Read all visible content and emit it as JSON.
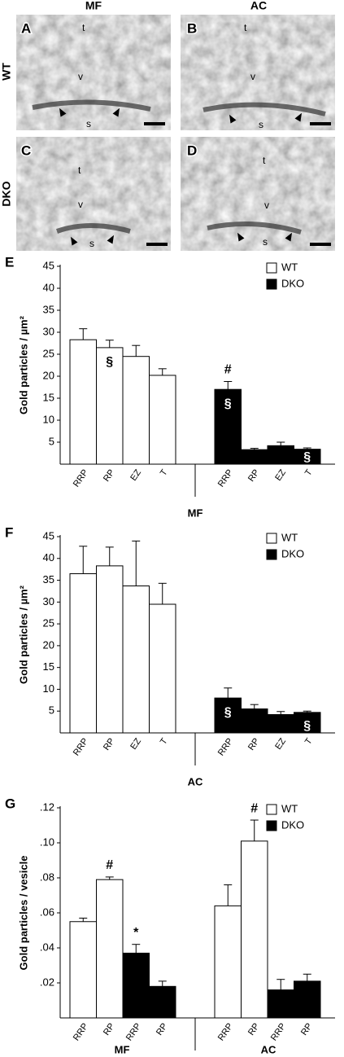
{
  "micrographs": {
    "headers": [
      "MF",
      "AC"
    ],
    "rows": [
      "WT",
      "DKO"
    ],
    "panels": [
      {
        "letter": "A",
        "labels": [
          "t",
          "v",
          "s"
        ]
      },
      {
        "letter": "B",
        "labels": [
          "t",
          "v",
          "s"
        ]
      },
      {
        "letter": "C",
        "labels": [
          "t",
          "v",
          "s"
        ]
      },
      {
        "letter": "D",
        "labels": [
          "t",
          "v",
          "s"
        ]
      }
    ]
  },
  "chart_data": [
    {
      "type": "bar",
      "panel": "E",
      "y_label": "Gold particles / µm²",
      "x_label": "MF",
      "categories": [
        "RRP",
        "RP",
        "EZ",
        "T",
        "RRP",
        "RP",
        "EZ",
        "T"
      ],
      "series": [
        {
          "name": "WT",
          "color": "#ffffff",
          "values": [
            28.3,
            26.5,
            24.5,
            20.2,
            null,
            null,
            null,
            null
          ],
          "errors": [
            2.5,
            1.7,
            2.5,
            1.5,
            null,
            null,
            null,
            null
          ],
          "labels_above": [
            null,
            null,
            null,
            null,
            null,
            null,
            null,
            null
          ],
          "labels_inside": [
            null,
            "§",
            null,
            null,
            null,
            null,
            null,
            null
          ]
        },
        {
          "name": "DKO",
          "color": "#000000",
          "values": [
            null,
            null,
            null,
            null,
            17.0,
            3.3,
            4.2,
            3.4
          ],
          "errors": [
            null,
            null,
            null,
            null,
            1.8,
            0.3,
            0.8,
            0.3
          ],
          "labels_above": [
            null,
            null,
            null,
            null,
            "#",
            null,
            null,
            null
          ],
          "labels_inside": [
            null,
            null,
            null,
            null,
            "§",
            null,
            null,
            "§"
          ]
        }
      ],
      "ylim": [
        0,
        45
      ],
      "yticks": [
        5,
        10,
        15,
        20,
        25,
        30,
        35,
        40,
        45
      ],
      "legend": "top-right"
    },
    {
      "type": "bar",
      "panel": "F",
      "y_label": "Gold particles / µm²",
      "x_label": "AC",
      "categories": [
        "RRP",
        "RP",
        "EZ",
        "T",
        "RRP",
        "RP",
        "EZ",
        "T"
      ],
      "series": [
        {
          "name": "WT",
          "color": "#ffffff",
          "values": [
            36.5,
            38.3,
            33.7,
            29.5,
            null,
            null,
            null,
            null
          ],
          "errors": [
            6.3,
            4.3,
            10.3,
            4.8,
            null,
            null,
            null,
            null
          ],
          "labels_above": [
            null,
            null,
            null,
            null,
            null,
            null,
            null,
            null
          ],
          "labels_inside": [
            null,
            null,
            null,
            null,
            null,
            null,
            null,
            null
          ]
        },
        {
          "name": "DKO",
          "color": "#000000",
          "values": [
            null,
            null,
            null,
            null,
            8.0,
            5.5,
            4.2,
            4.7
          ],
          "errors": [
            null,
            null,
            null,
            null,
            2.3,
            1.0,
            0.7,
            0.3
          ],
          "labels_above": [
            null,
            null,
            null,
            null,
            null,
            null,
            null,
            null
          ],
          "labels_inside": [
            null,
            null,
            null,
            null,
            "§",
            null,
            null,
            "§"
          ]
        }
      ],
      "ylim": [
        0,
        45
      ],
      "yticks": [
        5,
        10,
        15,
        20,
        25,
        30,
        35,
        40,
        45
      ],
      "legend": "top-right"
    },
    {
      "type": "bar",
      "panel": "G",
      "y_label": "Gold particles / vesicle",
      "x_groups": [
        "MF",
        "AC"
      ],
      "categories": [
        "RRP",
        "RP",
        "RRP",
        "RP",
        "RRP",
        "RP",
        "RRP",
        "RP"
      ],
      "series": [
        {
          "name": "WT",
          "color": "#ffffff",
          "values": [
            0.055,
            0.079,
            null,
            null,
            0.064,
            0.101,
            null,
            null
          ],
          "errors": [
            0.002,
            0.0015,
            null,
            null,
            0.012,
            0.012,
            null,
            null
          ],
          "labels_above": [
            null,
            "#",
            null,
            null,
            null,
            "#",
            null,
            null
          ],
          "labels_inside": [
            null,
            null,
            null,
            null,
            null,
            null,
            null,
            null
          ]
        },
        {
          "name": "DKO",
          "color": "#000000",
          "values": [
            null,
            null,
            0.037,
            0.018,
            null,
            null,
            0.016,
            0.021
          ],
          "errors": [
            null,
            null,
            0.005,
            0.003,
            null,
            null,
            0.006,
            0.004
          ],
          "labels_above": [
            null,
            null,
            "*",
            null,
            null,
            null,
            null,
            null
          ],
          "labels_inside": [
            null,
            null,
            null,
            null,
            null,
            null,
            null,
            null
          ]
        }
      ],
      "ylim": [
        0,
        0.12
      ],
      "yticks": [
        {
          "value": 0.02,
          "label": ".02"
        },
        {
          "value": 0.04,
          "label": ".04"
        },
        {
          "value": 0.06,
          "label": ".06"
        },
        {
          "value": 0.08,
          "label": ".08"
        },
        {
          "value": 0.1,
          "label": ".10"
        },
        {
          "value": 0.12,
          "label": ".12"
        }
      ],
      "legend": "top-right"
    }
  ]
}
